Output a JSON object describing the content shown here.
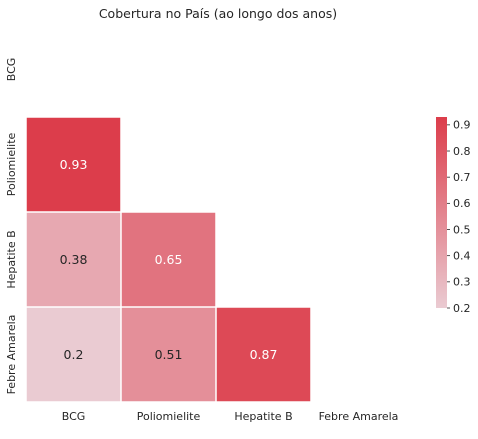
{
  "chart_data": {
    "type": "heatmap",
    "title": "Cobertura no País (ao longo dos anos)",
    "row_labels": [
      "BCG",
      "Poliomielite",
      "Hepatite B",
      "Febre Amarela"
    ],
    "col_labels": [
      "BCG",
      "Poliomielite",
      "Hepatite B",
      "Febre Amarela"
    ],
    "matrix": [
      [
        null,
        null,
        null,
        null
      ],
      [
        0.93,
        null,
        null,
        null
      ],
      [
        0.38,
        0.65,
        null,
        null
      ],
      [
        0.2,
        0.51,
        0.87,
        null
      ]
    ],
    "mask": "upper-triangle-including-diagonal",
    "colorbar": {
      "min": 0.2,
      "max": 0.93,
      "ticks": [
        "0.2",
        "0.3",
        "0.4",
        "0.5",
        "0.6",
        "0.7",
        "0.8",
        "0.9"
      ],
      "color_low": "#eacbd2",
      "color_high": "#dc3d4b"
    },
    "annotation_colors": {
      "light_text": "#ffffff",
      "dark_text": "#262626"
    },
    "cell_border_color": "#ffffff"
  }
}
